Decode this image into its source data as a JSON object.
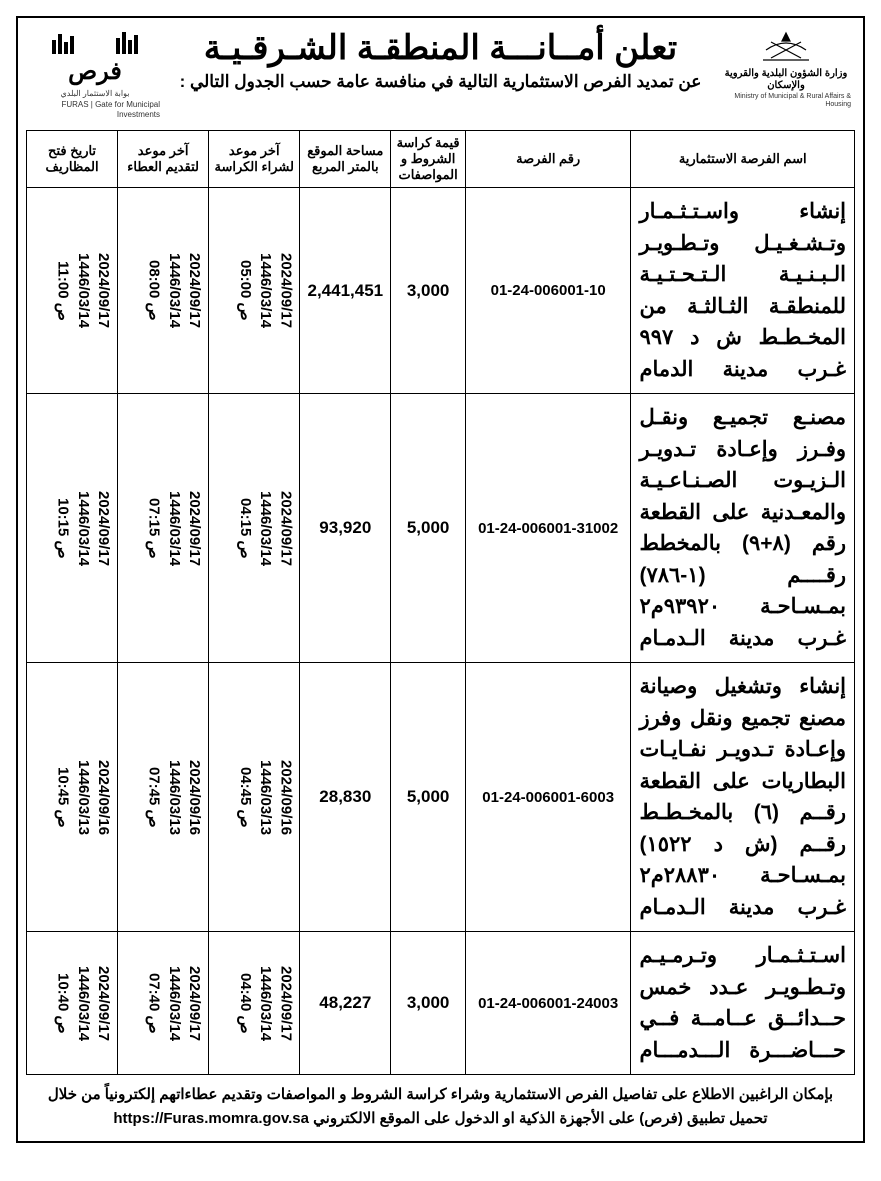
{
  "header": {
    "main_title": "تعلن أمــانـــة المنطقـة الشـرقـيـة",
    "sub_title": "عن تمديد الفرص الاستثمارية التالية في منافسة عامة حسب الجدول التالي :",
    "ministry_name": "وزارة الشؤون البلدية والقروية والإسكان",
    "ministry_sub": "Ministry of Municipal & Rural Affairs & Housing",
    "furas_word": "فرص",
    "furas_sub": "بوابة الاستثمار البلدي",
    "furas_sub_en": "FURAS | Gate for Municipal Investments"
  },
  "table": {
    "columns": [
      "اسم الفرصة الاستثمارية",
      "رقم الفرصة",
      "قيمة كراسة الشروط و المواصفات",
      "مساحة الموقع بالمتر المربع",
      "آخر موعد لشراء الكراسة",
      "آخر موعد لتقديم العطاء",
      "تاريخ فتح المظاريف"
    ],
    "rows": [
      {
        "name": "إنشاء واسـتـثـمـار وتـشـغـيـل وتـطـويـر الـبـنـيـة الـتـحـتـيـة للمنطقـة الثـالثـة من المخـطـط ش د ٩٩٧ غـرب مدينة الدمام",
        "ref": "01-24-006001-10",
        "price": "3,000",
        "area": "2,441,451",
        "d_buy": "2024/09/17\n1446/03/14\nص 05:00",
        "d_bid": "2024/09/17\n1446/03/14\nص 08:00",
        "d_open": "2024/09/17\n1446/03/14\nص 11:00"
      },
      {
        "name": "مصنـع تجميـع ونقـل وفـرز وإعـادة تـدويـر الـزيـوت الصـنـاعـيـة والمعـدنية على القطعة رقم (٨+٩) بالمخطط رقــــم (١-٧٨٦) بمـسـاحـة ٩٣٩٢٠م٢ غـرب مدينة الـدمـام",
        "ref": "01-24-006001-31002",
        "price": "5,000",
        "area": "93,920",
        "d_buy": "2024/09/17\n1446/03/14\nص 04:15",
        "d_bid": "2024/09/17\n1446/03/14\nص 07:15",
        "d_open": "2024/09/17\n1446/03/14\nص 10:15"
      },
      {
        "name": "إنشاء وتشغيل وصيانة مصنع تجميع ونقل وفرز وإعـادة تـدويـر نفـايـات البطاريات على القطعة رقــم (٦) بالمخـطـط رقــم (ش د ١٥٢٢) بمـسـاحـة ٢٨٨٣٠م٢ غـرب مدينة الـدمـام",
        "ref": "01-24-006001-6003",
        "price": "5,000",
        "area": "28,830",
        "d_buy": "2024/09/16\n1446/03/13\nص 04:45",
        "d_bid": "2024/09/16\n1446/03/13\nص 07:45",
        "d_open": "2024/09/16\n1446/03/13\nص 10:45"
      },
      {
        "name": "اسـتـثـمـار وتـرمـيـم وتـطـويـر عـدد خمس حــدائــق عــامــة فــي حـــاضـــرة الـــدمـــام",
        "ref": "01-24-006001-24003",
        "price": "3,000",
        "area": "48,227",
        "d_buy": "2024/09/17\n1446/03/14\nص 04:40",
        "d_bid": "2024/09/17\n1446/03/14\nص 07:40",
        "d_open": "2024/09/17\n1446/03/14\nص 10:40"
      }
    ]
  },
  "footer": {
    "line1": "بإمكان الراغبين الاطلاع على تفاصيل الفرص الاستثمارية وشراء كراسة الشروط و المواصفات وتقديم عطاءاتهم إلكترونياً من خلال",
    "line2_pre": "تحميل تطبيق (فرص) على الأجهزة الذكية او الدخول على الموقع الالكتروني",
    "url": "https://Furas.momra.gov.sa"
  }
}
